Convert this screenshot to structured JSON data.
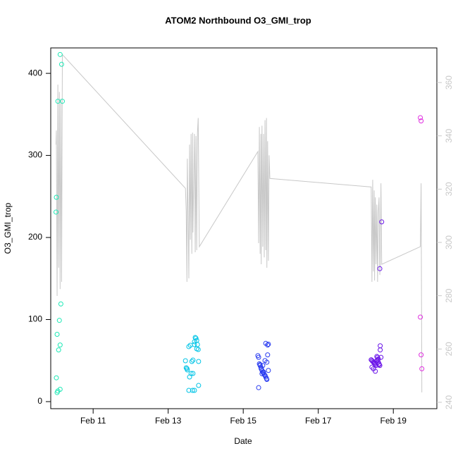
{
  "chart_data": {
    "type": "scatter",
    "title": "ATOM2 Northbound O3_GMI_trop",
    "x_label": "Date",
    "y_label": "O3_GMI_trop",
    "xlim": [
      9.87,
      20.16
    ],
    "ylim": [
      -8.6,
      431
    ],
    "y2lim": [
      237.6,
      373
    ],
    "xticks": [
      {
        "value": 11,
        "label": "Feb 11"
      },
      {
        "value": 13,
        "label": "Feb 13"
      },
      {
        "value": 15,
        "label": "Feb 15"
      },
      {
        "value": 17,
        "label": "Feb 17"
      },
      {
        "value": 19,
        "label": "Feb 19"
      }
    ],
    "yticks": [
      0,
      100,
      200,
      300,
      400
    ],
    "y2ticks": [
      240,
      260,
      280,
      300,
      320,
      340,
      360
    ],
    "y2_color": "#c8c8c8",
    "series": [
      {
        "type": "line",
        "axis": "y2",
        "color": "#c8c8c8",
        "x": [
          10.01,
          10.02,
          10.04,
          10.06,
          10.08,
          10.1,
          10.12,
          10.14,
          10.16,
          10.18,
          13.46,
          13.48,
          13.5,
          13.51,
          13.53,
          13.55,
          13.57,
          13.59,
          13.61,
          13.63,
          13.65,
          13.66,
          13.7,
          13.72,
          13.74,
          13.76,
          13.78,
          13.8,
          13.83,
          15.39,
          15.41,
          15.43,
          15.45,
          15.47,
          15.48,
          15.5,
          15.52,
          15.54,
          15.56,
          15.58,
          15.6,
          15.62,
          15.63,
          15.65,
          15.67,
          15.69,
          15.71,
          18.41,
          18.43,
          18.45,
          18.47,
          18.49,
          18.5,
          18.52,
          18.54,
          18.56,
          18.58,
          18.6,
          18.62,
          18.64,
          18.65,
          18.67,
          18.69,
          19.72,
          19.74,
          19.76
        ],
        "values": [
          336.7,
          342.0,
          279.9,
          359.2,
          290.5,
          356.5,
          282.5,
          353.9,
          285.2,
          370.5,
          320.3,
          311.6,
          285.2,
          331.4,
          311.6,
          286.5,
          336.7,
          301.0,
          340.7,
          295.7,
          341.2,
          303.7,
          340.7,
          296.3,
          339.9,
          297.1,
          341.2,
          346.7,
          298.4,
          334.1,
          299.7,
          343.3,
          295.7,
          340.7,
          291.8,
          343.8,
          298.4,
          340.7,
          294.4,
          345.9,
          297.1,
          346.7,
          290.5,
          338.0,
          293.1,
          332.7,
          324.0,
          320.8,
          285.2,
          323.5,
          289.1,
          319.5,
          285.7,
          316.9,
          291.8,
          314.2,
          285.2,
          311.6,
          316.9,
          287.8,
          291.8,
          322.2,
          291.8,
          298.4,
          322.2,
          243.7
        ]
      },
      {
        "color": "#1de9b6",
        "x": [
          10.12,
          10.16,
          10.06,
          10.18,
          10.02,
          10.01,
          10.14,
          10.1,
          10.04,
          10.12,
          10.08,
          10.02,
          10.12,
          10.06,
          10.04
        ],
        "values": [
          423,
          411,
          366,
          366,
          249,
          231,
          119,
          99,
          82,
          69,
          63,
          29,
          15,
          13,
          11
        ]
      },
      {
        "color": "#00c4e6",
        "x": [
          13.46,
          13.48,
          13.5,
          13.51,
          13.55,
          13.59,
          13.63,
          13.66,
          13.61,
          13.57,
          13.55,
          13.65,
          13.7,
          13.81,
          13.66,
          13.7,
          13.74,
          13.7,
          13.78,
          13.76,
          13.8,
          13.81,
          13.72,
          13.76
        ],
        "values": [
          49.8,
          41.2,
          40.3,
          38.6,
          67.0,
          68.7,
          48.9,
          50.6,
          34.3,
          30.0,
          13.7,
          13.7,
          13.7,
          19.7,
          34.3,
          73.0,
          77.3,
          69.5,
          69.5,
          64.4,
          63.5,
          48.9,
          78.1,
          74.7
        ]
      },
      {
        "color": "#2a3cf0",
        "x": [
          15.39,
          15.41,
          15.43,
          15.45,
          15.47,
          15.48,
          15.5,
          15.52,
          15.54,
          15.56,
          15.58,
          15.6,
          15.62,
          15.63,
          15.41,
          15.6,
          15.65,
          15.67,
          15.65,
          15.63,
          15.45,
          15.58,
          15.52,
          15.48,
          15.67,
          15.54,
          15.5
        ],
        "values": [
          56,
          54,
          46,
          44,
          42,
          40,
          38,
          36,
          35,
          33,
          32,
          30,
          28,
          27,
          17,
          71,
          69,
          70,
          57,
          48,
          45,
          50,
          44,
          40,
          38,
          36,
          34
        ]
      },
      {
        "color": "#6a14e8",
        "x": [
          18.41,
          18.43,
          18.45,
          18.47,
          18.49,
          18.5,
          18.52,
          18.54,
          18.56,
          18.58,
          18.6,
          18.62,
          18.64,
          18.43,
          18.47,
          18.52,
          18.56,
          18.6,
          18.58,
          18.62,
          18.67,
          18.69,
          18.64,
          18.65,
          18.65
        ],
        "values": [
          51,
          50,
          49,
          48,
          47,
          46,
          45,
          44,
          50,
          51,
          48,
          46,
          44,
          42,
          40,
          37,
          55,
          52,
          54,
          45,
          54,
          219,
          162,
          68,
          63
        ]
      },
      {
        "color": "#e030e0",
        "x": [
          19.72,
          19.74,
          19.72,
          19.74,
          19.76
        ],
        "values": [
          346,
          342,
          103,
          57,
          40
        ]
      }
    ]
  }
}
